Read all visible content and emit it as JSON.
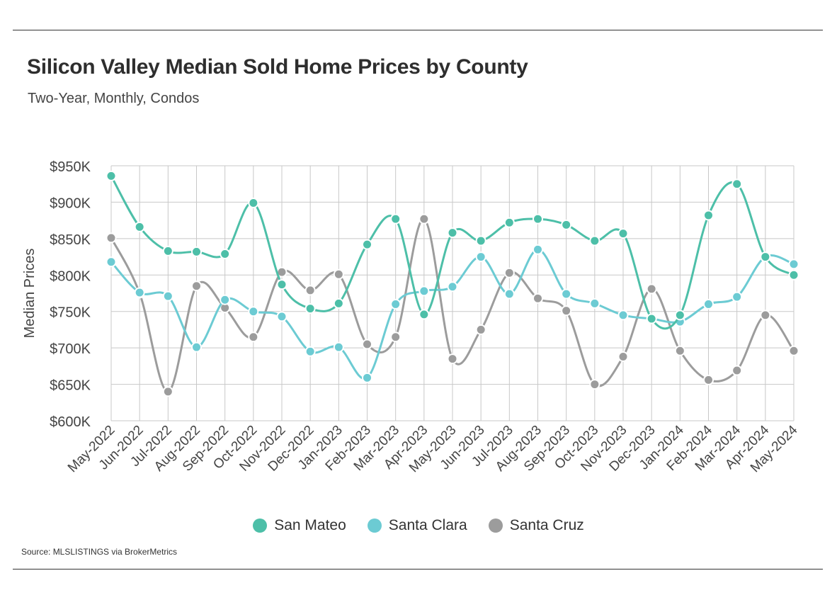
{
  "header": {
    "title": "Silicon Valley Median Sold Home Prices by County",
    "subtitle": "Two-Year, Monthly, Condos"
  },
  "footer": {
    "source": "Source:  MLSLISTINGS via BrokerMetrics"
  },
  "colors": {
    "San Mateo": "#4dbfa8",
    "Santa Clara": "#6ccbd3",
    "Santa Cruz": "#9c9c9c",
    "grid": "#c8c8c8",
    "axis": "#555555"
  },
  "chart_data": {
    "type": "line",
    "title": "Silicon Valley Median Sold Home Prices by County",
    "subtitle": "Two-Year, Monthly, Condos",
    "xlabel": "",
    "ylabel": "Median Prices",
    "ylim": [
      600000,
      950000
    ],
    "yticks": [
      600000,
      650000,
      700000,
      750000,
      800000,
      850000,
      900000,
      950000
    ],
    "ytick_labels": [
      "$600K",
      "$650K",
      "$700K",
      "$750K",
      "$800K",
      "$850K",
      "$900K",
      "$950K"
    ],
    "grid": true,
    "legend_position": "bottom-center",
    "smooth": true,
    "categories": [
      "May-2022",
      "Jun-2022",
      "Jul-2022",
      "Aug-2022",
      "Sep-2022",
      "Oct-2022",
      "Nov-2022",
      "Dec-2022",
      "Jan-2023",
      "Feb-2023",
      "Mar-2023",
      "Apr-2023",
      "May-2023",
      "Jun-2023",
      "Jul-2023",
      "Aug-2023",
      "Sep-2023",
      "Oct-2023",
      "Nov-2023",
      "Dec-2023",
      "Jan-2024",
      "Feb-2024",
      "Mar-2024",
      "Apr-2024",
      "May-2024"
    ],
    "series": [
      {
        "name": "San Mateo",
        "values": [
          936000,
          866000,
          833000,
          832000,
          829000,
          899000,
          787000,
          754000,
          761000,
          842000,
          877000,
          746000,
          858000,
          847000,
          872000,
          877000,
          869000,
          847000,
          857000,
          740000,
          745000,
          882000,
          925000,
          825000,
          800000
        ]
      },
      {
        "name": "Santa Clara",
        "values": [
          818000,
          776000,
          771000,
          701000,
          766000,
          750000,
          743000,
          695000,
          701000,
          659000,
          760000,
          778000,
          784000,
          825000,
          774000,
          835000,
          774000,
          761000,
          745000,
          740000,
          736000,
          760000,
          770000,
          825000,
          815000
        ]
      },
      {
        "name": "Santa Cruz",
        "values": [
          851000,
          775000,
          640000,
          785000,
          755000,
          715000,
          804000,
          779000,
          801000,
          705000,
          715000,
          877000,
          685000,
          725000,
          803000,
          768000,
          751000,
          650000,
          688000,
          781000,
          696000,
          656000,
          669000,
          745000,
          696000
        ]
      }
    ]
  }
}
